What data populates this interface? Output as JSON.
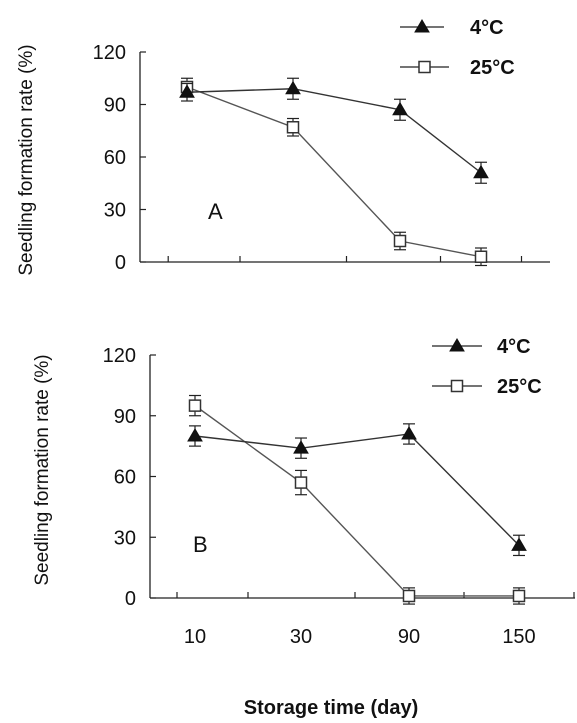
{
  "chart_data": [
    {
      "type": "line",
      "panel_label": "A",
      "categories": [
        "10",
        "30",
        "90",
        "150"
      ],
      "ylabel": "Seedling formation rate (%)",
      "ylim": [
        0,
        120
      ],
      "yticks": [
        "0",
        "30",
        "60",
        "90",
        "120"
      ],
      "legend_position": "top-right",
      "series": [
        {
          "name": "4°C",
          "marker": "filled-triangle",
          "values": [
            97,
            99,
            87,
            51
          ],
          "errors": [
            5,
            6,
            6,
            6
          ]
        },
        {
          "name": "25°C",
          "marker": "open-square",
          "values": [
            100,
            77,
            12,
            3
          ],
          "errors": [
            5,
            5,
            5,
            5
          ]
        }
      ]
    },
    {
      "type": "line",
      "panel_label": "B",
      "categories": [
        "10",
        "30",
        "90",
        "150"
      ],
      "xticks": [
        "10",
        "30",
        "90",
        "150"
      ],
      "xlabel": "Storage time (day)",
      "ylabel": "Seedling formation rate (%)",
      "ylim": [
        0,
        120
      ],
      "yticks": [
        "0",
        "30",
        "60",
        "90",
        "120"
      ],
      "legend_position": "top-right",
      "series": [
        {
          "name": "4°C",
          "marker": "filled-triangle",
          "values": [
            80,
            74,
            81,
            26
          ],
          "errors": [
            5,
            5,
            5,
            5
          ]
        },
        {
          "name": "25°C",
          "marker": "open-square",
          "values": [
            95,
            57,
            1,
            1
          ],
          "errors": [
            5,
            6,
            4,
            4
          ]
        }
      ]
    }
  ]
}
